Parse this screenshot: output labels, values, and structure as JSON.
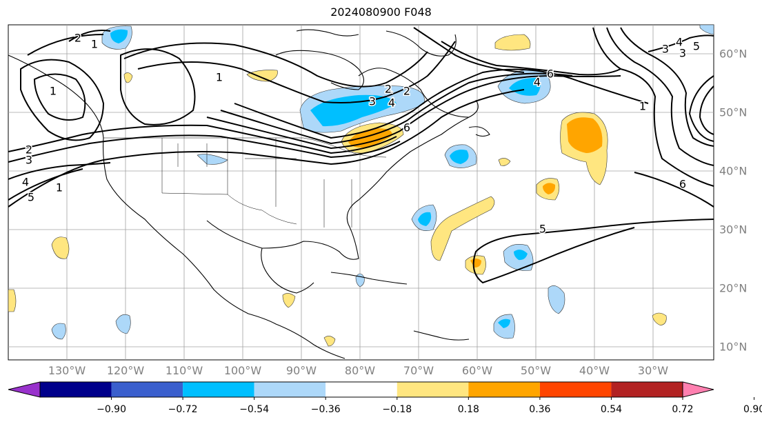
{
  "title": "2024080900 F048",
  "longitude_labels": [
    "130°W",
    "120°W",
    "110°W",
    "100°W",
    "90°W",
    "80°W",
    "70°W",
    "60°W",
    "50°W",
    "40°W",
    "30°W"
  ],
  "latitude_labels": [
    "60°N",
    "50°N",
    "40°N",
    "30°N",
    "20°N",
    "10°N"
  ],
  "colorbar": {
    "tick_labels": [
      "−0.90",
      "−0.72",
      "−0.54",
      "−0.36",
      "−0.18",
      "0.18",
      "0.36",
      "0.54",
      "0.72",
      "0.90"
    ],
    "levels": [
      -0.9,
      -0.72,
      -0.54,
      -0.36,
      -0.18,
      0.18,
      0.36,
      0.54,
      0.72,
      0.9
    ],
    "colors": [
      "#9932cc",
      "#00008b",
      "#3a5fcd",
      "#00bfff",
      "#add8f9",
      "#ffffff",
      "#ffe680",
      "#ffa500",
      "#ff4500",
      "#b22222",
      "#ff80b0"
    ]
  },
  "contour_labels": [
    "1",
    "2",
    "3",
    "4",
    "5",
    "6",
    "1",
    "2",
    "3",
    "4",
    "5",
    "6",
    "1",
    "1",
    "2",
    "3",
    "4",
    "5",
    "1",
    "2",
    "3",
    "4",
    "6",
    "1"
  ]
}
